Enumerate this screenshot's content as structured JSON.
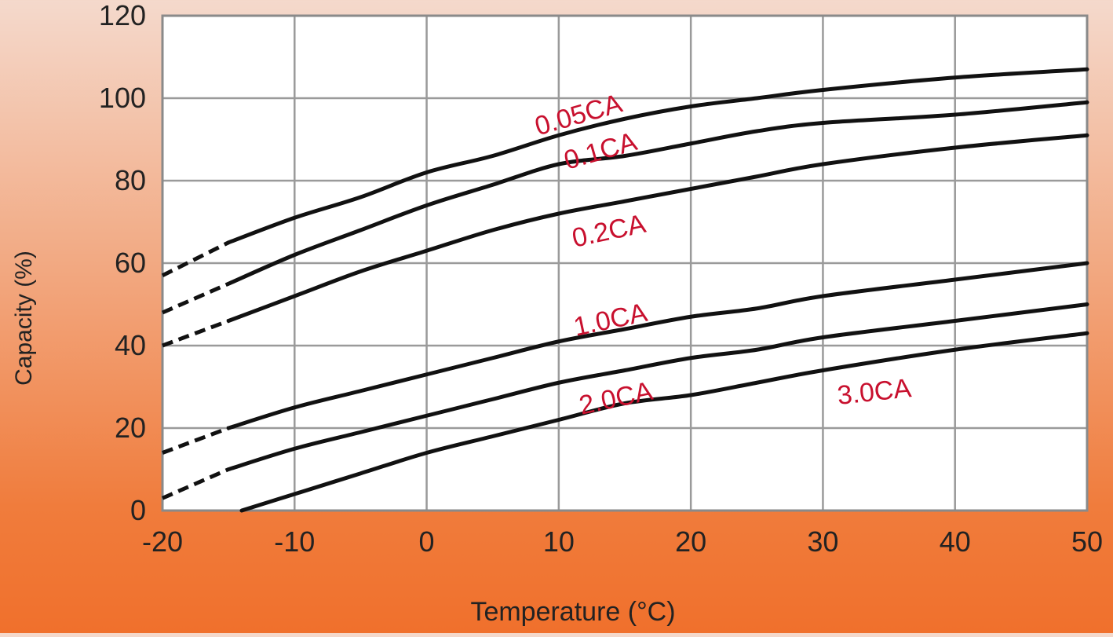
{
  "chart_data": {
    "type": "line",
    "xlabel": "Temperature (°C)",
    "ylabel": "Capacity (%)",
    "xlim": [
      -20,
      50
    ],
    "ylim": [
      0,
      120
    ],
    "x_ticks": [
      -20,
      -10,
      0,
      10,
      20,
      30,
      40,
      50
    ],
    "y_ticks": [
      0,
      20,
      40,
      60,
      80,
      100,
      120
    ],
    "grid": true,
    "label_color": "#c8102e",
    "line_color": "#111111",
    "series": [
      {
        "name": "0.05CA",
        "dashed": [
          [
            -20,
            57
          ],
          [
            -15,
            65
          ]
        ],
        "solid": [
          [
            -15,
            65
          ],
          [
            -10,
            71
          ],
          [
            -5,
            76
          ],
          [
            0,
            82
          ],
          [
            5,
            86
          ],
          [
            10,
            91
          ],
          [
            15,
            95
          ],
          [
            20,
            98
          ],
          [
            25,
            100
          ],
          [
            30,
            102
          ],
          [
            40,
            105
          ],
          [
            50,
            107
          ]
        ]
      },
      {
        "name": "0.1CA",
        "dashed": [
          [
            -20,
            48
          ],
          [
            -15,
            55
          ]
        ],
        "solid": [
          [
            -15,
            55
          ],
          [
            -10,
            62
          ],
          [
            -5,
            68
          ],
          [
            0,
            74
          ],
          [
            5,
            79
          ],
          [
            10,
            84
          ],
          [
            15,
            86
          ],
          [
            20,
            89
          ],
          [
            25,
            92
          ],
          [
            30,
            94
          ],
          [
            40,
            96
          ],
          [
            50,
            99
          ]
        ]
      },
      {
        "name": "0.2CA",
        "dashed": [
          [
            -20,
            40
          ],
          [
            -15,
            46
          ]
        ],
        "solid": [
          [
            -15,
            46
          ],
          [
            -10,
            52
          ],
          [
            -5,
            58
          ],
          [
            0,
            63
          ],
          [
            5,
            68
          ],
          [
            10,
            72
          ],
          [
            15,
            75
          ],
          [
            20,
            78
          ],
          [
            25,
            81
          ],
          [
            30,
            84
          ],
          [
            40,
            88
          ],
          [
            50,
            91
          ]
        ]
      },
      {
        "name": "1.0CA",
        "dashed": [
          [
            -20,
            14
          ],
          [
            -15,
            20
          ]
        ],
        "solid": [
          [
            -15,
            20
          ],
          [
            -10,
            25
          ],
          [
            -5,
            29
          ],
          [
            0,
            33
          ],
          [
            5,
            37
          ],
          [
            10,
            41
          ],
          [
            15,
            44
          ],
          [
            20,
            47
          ],
          [
            25,
            49
          ],
          [
            30,
            52
          ],
          [
            40,
            56
          ],
          [
            50,
            60
          ]
        ]
      },
      {
        "name": "2.0CA",
        "dashed": [
          [
            -20,
            3
          ],
          [
            -15,
            10
          ]
        ],
        "solid": [
          [
            -15,
            10
          ],
          [
            -10,
            15
          ],
          [
            -5,
            19
          ],
          [
            0,
            23
          ],
          [
            5,
            27
          ],
          [
            10,
            31
          ],
          [
            15,
            34
          ],
          [
            20,
            37
          ],
          [
            25,
            39
          ],
          [
            30,
            42
          ],
          [
            40,
            46
          ],
          [
            50,
            50
          ]
        ]
      },
      {
        "name": "3.0CA",
        "dashed": [],
        "solid": [
          [
            -14,
            0
          ],
          [
            -10,
            4
          ],
          [
            -5,
            9
          ],
          [
            0,
            14
          ],
          [
            5,
            18
          ],
          [
            10,
            22
          ],
          [
            15,
            26
          ],
          [
            20,
            28
          ],
          [
            25,
            31
          ],
          [
            30,
            34
          ],
          [
            40,
            39
          ],
          [
            50,
            43
          ]
        ]
      }
    ]
  }
}
